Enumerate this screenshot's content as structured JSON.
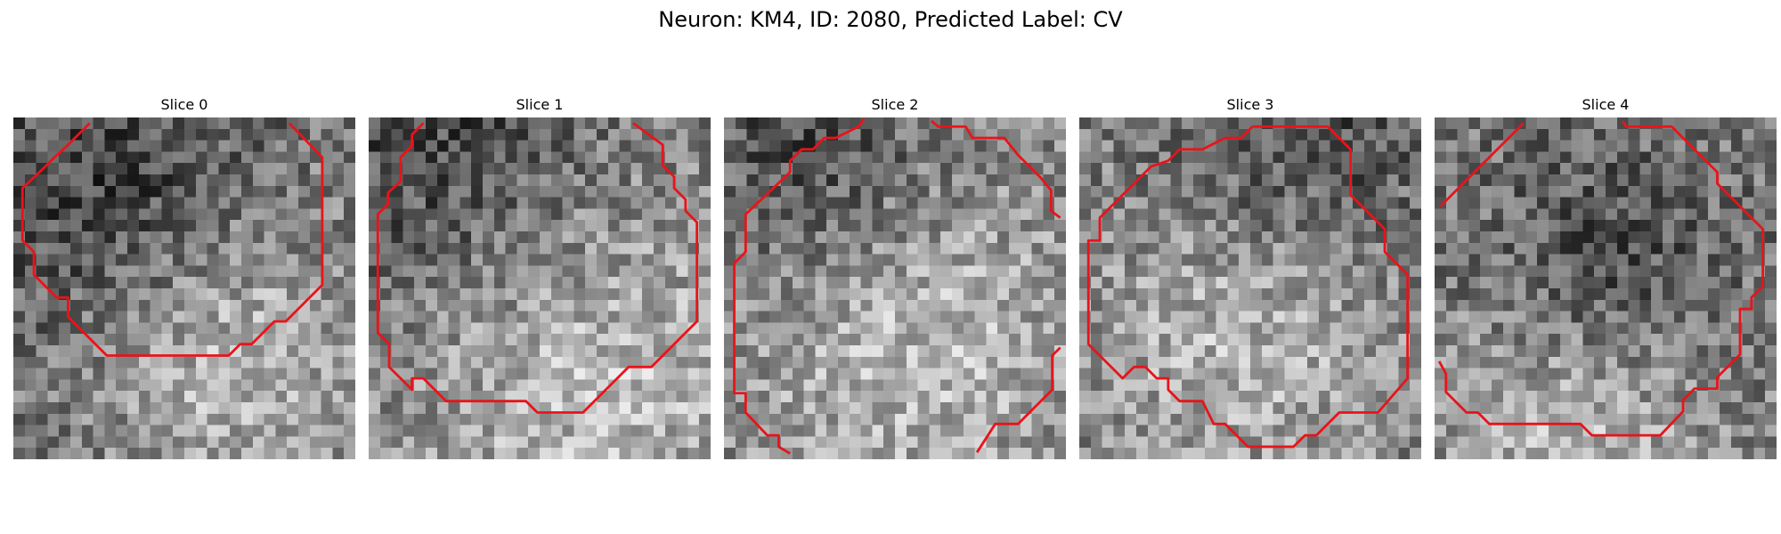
{
  "figure": {
    "title": "Neuron: KM4, ID: 2080, Predicted Label: CV"
  },
  "slices": [
    {
      "label": "Slice 0",
      "seed": 11,
      "bright": [
        0.62,
        0.66,
        0.3
      ],
      "dark": [
        0.28,
        0.22,
        0.32
      ]
    },
    {
      "label": "Slice 1",
      "seed": 23,
      "bright": [
        0.62,
        0.72,
        0.45
      ],
      "dark": [
        0.22,
        0.12,
        0.35
      ]
    },
    {
      "label": "Slice 2",
      "seed": 37,
      "bright": [
        0.52,
        0.62,
        0.4
      ],
      "dark": [
        0.25,
        0.1,
        0.28
      ]
    },
    {
      "label": "Slice 3",
      "seed": 41,
      "bright": [
        0.48,
        0.58,
        0.35
      ],
      "dark": [
        0.62,
        0.12,
        0.28
      ]
    },
    {
      "label": "Slice 4",
      "seed": 59,
      "bright": [
        0.4,
        0.85,
        0.3
      ],
      "dark": [
        0.48,
        0.45,
        0.25
      ]
    }
  ],
  "colors": {
    "contour": "#e8141a",
    "background": "#ffffff"
  }
}
